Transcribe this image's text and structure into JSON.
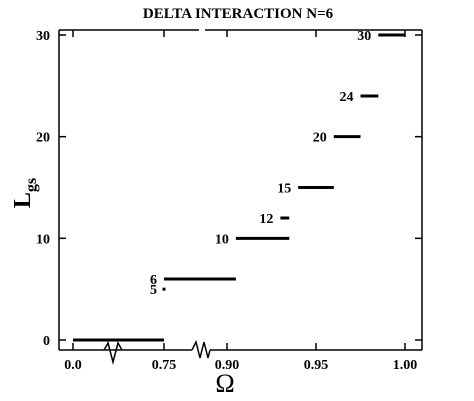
{
  "chart_data": {
    "type": "step-levels",
    "title": "DELTA  INTERACTION  N=6",
    "xlabel": "Ω",
    "ylabel_main": "L",
    "ylabel_sub": "gs",
    "x_ticks": [
      {
        "value": 0.0,
        "label": "0.0"
      },
      {
        "value": 0.75,
        "label": "0.75"
      },
      {
        "value": 0.9,
        "label": "0.90"
      },
      {
        "value": 0.95,
        "label": "0.95"
      },
      {
        "value": 1.0,
        "label": "1.00"
      }
    ],
    "y_ticks": [
      {
        "value": 0,
        "label": "0"
      },
      {
        "value": 10,
        "label": "10"
      },
      {
        "value": 20,
        "label": "20"
      },
      {
        "value": 30,
        "label": "30"
      }
    ],
    "ylim": [
      -0.5,
      31.0
    ],
    "axis_break": "between 0.75 and 0.90",
    "segments": [
      {
        "level": 0,
        "x_start": 0.0,
        "x_end": 0.75,
        "label": ""
      },
      {
        "level": 5,
        "x_start": 0.75,
        "x_end": 0.75,
        "label": "5"
      },
      {
        "level": 6,
        "x_start": 0.75,
        "x_end": 0.85,
        "label": "6"
      },
      {
        "level": 6,
        "x_start": 0.85,
        "x_end": 0.905,
        "label": ""
      },
      {
        "level": 10,
        "x_start": 0.905,
        "x_end": 0.935,
        "label": "10"
      },
      {
        "level": 12,
        "x_start": 0.93,
        "x_end": 0.935,
        "label": "12"
      },
      {
        "level": 15,
        "x_start": 0.94,
        "x_end": 0.96,
        "label": "15"
      },
      {
        "level": 20,
        "x_start": 0.96,
        "x_end": 0.975,
        "label": "20"
      },
      {
        "level": 24,
        "x_start": 0.975,
        "x_end": 0.985,
        "label": "24"
      },
      {
        "level": 30,
        "x_start": 0.985,
        "x_end": 1.0,
        "label": "30"
      }
    ]
  }
}
